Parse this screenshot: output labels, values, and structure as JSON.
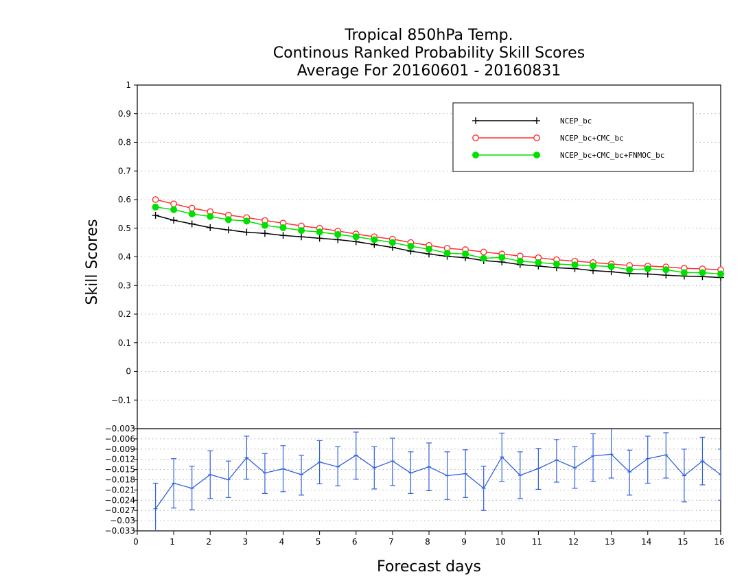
{
  "chart_data": {
    "type": "line",
    "title": [
      "Tropical 850hPa Temp.",
      "Continous Ranked Probability Skill Scores",
      "Average For 20160601 - 20160831"
    ],
    "xlabel": "Forecast days",
    "ylabel": "Skill Scores",
    "xlim": [
      0,
      16
    ],
    "ylim": [
      -0.2,
      1
    ],
    "x_ticks": [
      0,
      1,
      2,
      3,
      4,
      5,
      6,
      7,
      8,
      9,
      10,
      11,
      12,
      13,
      14,
      15,
      16
    ],
    "y_ticks": [
      -0.1,
      0,
      0.1,
      0.2,
      0.3,
      0.4,
      0.5,
      0.6,
      0.7,
      0.8,
      0.9,
      1
    ],
    "y_tick_labels": [
      "−0.1",
      "0",
      "0.1",
      "0.2",
      "0.3",
      "0.4",
      "0.5",
      "0.6",
      "0.7",
      "0.8",
      "0.9",
      "1"
    ],
    "grid": true,
    "legend_position": "top-right",
    "x": [
      0.5,
      1,
      1.5,
      2,
      2.5,
      3,
      3.5,
      4,
      4.5,
      5,
      5.5,
      6,
      6.5,
      7,
      7.5,
      8,
      8.5,
      9,
      9.5,
      10,
      10.5,
      11,
      11.5,
      12,
      12.5,
      13,
      13.5,
      14,
      14.5,
      15,
      15.5,
      16
    ],
    "series": [
      {
        "name": "NCEP_bc",
        "color": "#000000",
        "marker": "plus",
        "values": [
          0.545,
          0.528,
          0.515,
          0.502,
          0.494,
          0.486,
          0.482,
          0.475,
          0.47,
          0.465,
          0.46,
          0.453,
          0.443,
          0.433,
          0.42,
          0.41,
          0.402,
          0.397,
          0.387,
          0.382,
          0.373,
          0.368,
          0.362,
          0.359,
          0.352,
          0.348,
          0.342,
          0.34,
          0.336,
          0.333,
          0.331,
          0.328
        ]
      },
      {
        "name": "NCEP_bc+CMC_bc",
        "color": "#ff3030",
        "marker": "open-circle",
        "values": [
          0.6,
          0.585,
          0.57,
          0.558,
          0.546,
          0.537,
          0.527,
          0.518,
          0.508,
          0.5,
          0.49,
          0.48,
          0.47,
          0.462,
          0.45,
          0.44,
          0.43,
          0.425,
          0.417,
          0.41,
          0.403,
          0.397,
          0.39,
          0.385,
          0.38,
          0.375,
          0.37,
          0.368,
          0.365,
          0.36,
          0.358,
          0.355
        ]
      },
      {
        "name": "NCEP_bc+CMC_bc+FNMOC_bc",
        "color": "#00e000",
        "marker": "filled-circle",
        "values": [
          0.574,
          0.565,
          0.55,
          0.541,
          0.53,
          0.525,
          0.51,
          0.502,
          0.492,
          0.487,
          0.478,
          0.47,
          0.46,
          0.45,
          0.437,
          0.427,
          0.413,
          0.41,
          0.395,
          0.398,
          0.385,
          0.38,
          0.375,
          0.372,
          0.369,
          0.366,
          0.355,
          0.358,
          0.355,
          0.345,
          0.345,
          0.34
        ]
      }
    ],
    "difference_panel": {
      "type": "line-errorbar",
      "ylim": [
        -0.033,
        -0.003
      ],
      "y_ticks": [
        -0.033,
        -0.03,
        -0.027,
        -0.024,
        -0.021,
        -0.018,
        -0.015,
        -0.012,
        -0.009,
        -0.006,
        -0.003
      ],
      "y_tick_labels": [
        "−0.033",
        "−0.03",
        "−0.027",
        "−0.024",
        "−0.021",
        "−0.018",
        "−0.015",
        "−0.012",
        "−0.009",
        "−0.006",
        "−0.003"
      ],
      "color": "#3060e0",
      "values": [
        -0.0265,
        -0.019,
        -0.0205,
        -0.0165,
        -0.018,
        -0.0115,
        -0.016,
        -0.0148,
        -0.0165,
        -0.0128,
        -0.0142,
        -0.0108,
        -0.0145,
        -0.0125,
        -0.016,
        -0.0142,
        -0.0168,
        -0.0162,
        -0.0205,
        -0.0113,
        -0.0167,
        -0.0147,
        -0.0122,
        -0.0145,
        -0.011,
        -0.0105,
        -0.0157,
        -0.0118,
        -0.0107,
        -0.0168,
        -0.0125,
        -0.0165
      ],
      "err_low": [
        -0.0335,
        -0.0263,
        -0.0268,
        -0.0235,
        -0.0232,
        -0.0178,
        -0.022,
        -0.0215,
        -0.0225,
        -0.0192,
        -0.0198,
        -0.0178,
        -0.0207,
        -0.0197,
        -0.022,
        -0.0212,
        -0.0238,
        -0.0232,
        -0.027,
        -0.0185,
        -0.0235,
        -0.0208,
        -0.0187,
        -0.0205,
        -0.0185,
        -0.0175,
        -0.0225,
        -0.019,
        -0.0175,
        -0.0245,
        -0.0195,
        -0.024
      ],
      "err_high": [
        -0.019,
        -0.0118,
        -0.014,
        -0.0095,
        -0.0125,
        -0.0052,
        -0.0103,
        -0.008,
        -0.0108,
        -0.0065,
        -0.0083,
        -0.004,
        -0.0083,
        -0.0058,
        -0.0098,
        -0.0072,
        -0.0098,
        -0.0092,
        -0.014,
        -0.0043,
        -0.0098,
        -0.0088,
        -0.0062,
        -0.0083,
        -0.0045,
        -0.0028,
        -0.0093,
        -0.0052,
        -0.0042,
        -0.009,
        -0.0055,
        -0.009
      ]
    }
  }
}
